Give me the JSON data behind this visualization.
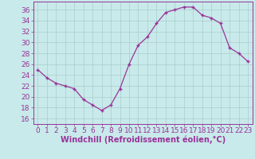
{
  "x": [
    0,
    1,
    2,
    3,
    4,
    5,
    6,
    7,
    8,
    9,
    10,
    11,
    12,
    13,
    14,
    15,
    16,
    17,
    18,
    19,
    20,
    21,
    22,
    23
  ],
  "y": [
    25,
    23.5,
    22.5,
    22,
    21.5,
    19.5,
    18.5,
    17.5,
    18.5,
    21.5,
    26,
    29.5,
    31,
    33.5,
    35.5,
    36,
    36.5,
    36.5,
    35,
    34.5,
    33.5,
    29,
    28,
    26.5
  ],
  "line_color": "#993399",
  "marker": "+",
  "marker_color": "#993399",
  "bg_color": "#c8eaea",
  "grid_color": "#aacccc",
  "xlabel": "Windchill (Refroidissement éolien,°C)",
  "xlabel_color": "#993399",
  "tick_color": "#993399",
  "ylim": [
    15,
    37.5
  ],
  "xlim": [
    -0.5,
    23.5
  ],
  "yticks": [
    16,
    18,
    20,
    22,
    24,
    26,
    28,
    30,
    32,
    34,
    36
  ],
  "xticks": [
    0,
    1,
    2,
    3,
    4,
    5,
    6,
    7,
    8,
    9,
    10,
    11,
    12,
    13,
    14,
    15,
    16,
    17,
    18,
    19,
    20,
    21,
    22,
    23
  ],
  "tick_fontsize": 6.5,
  "xlabel_fontsize": 7
}
